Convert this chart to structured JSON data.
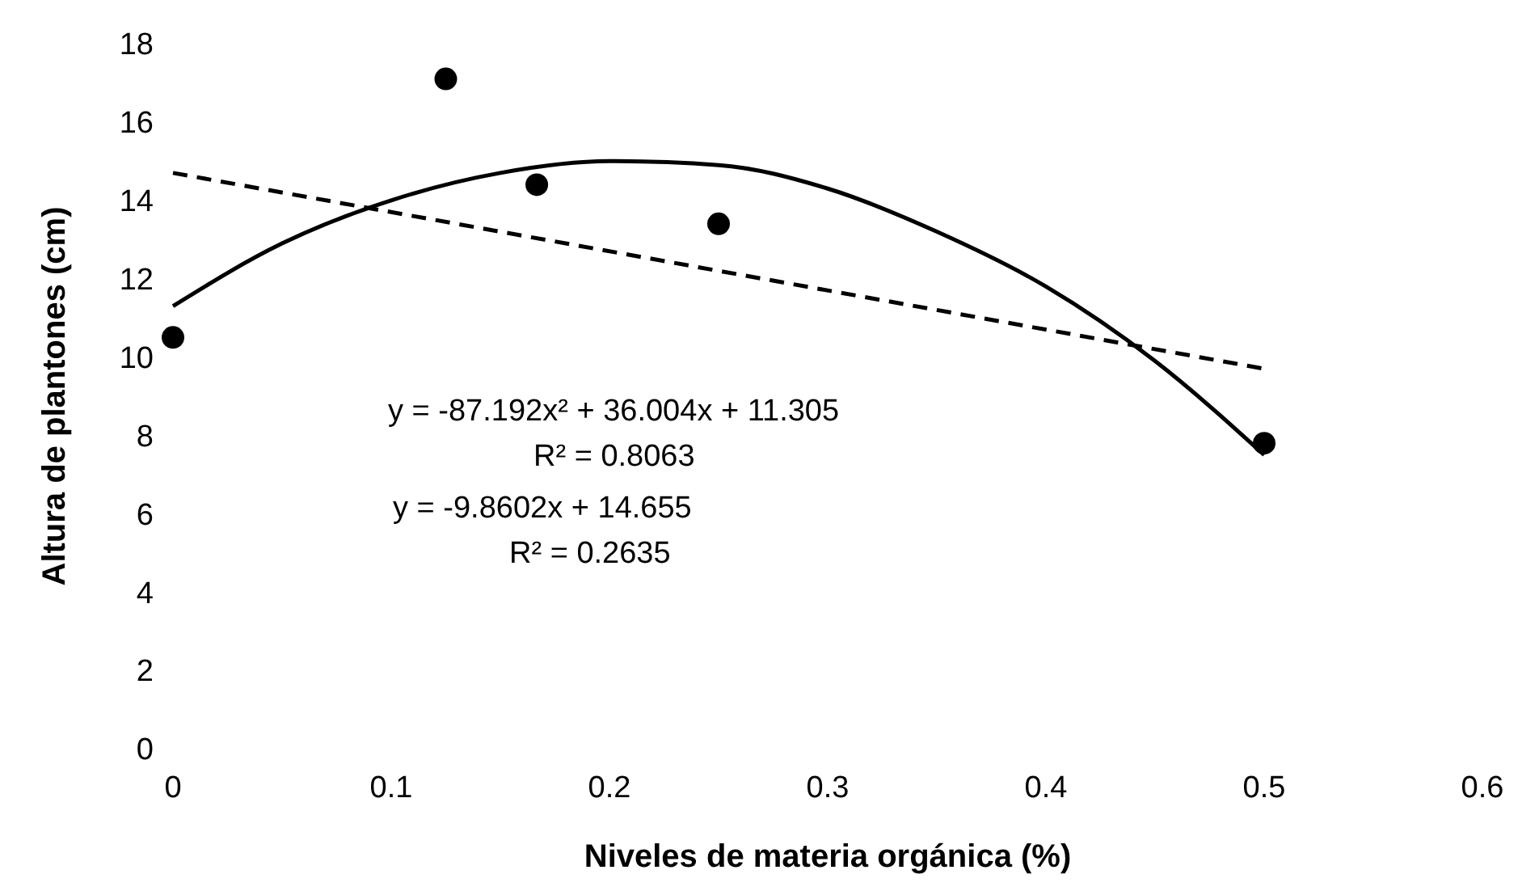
{
  "chart_data": {
    "type": "scatter",
    "xlabel": "Niveles de materia orgánica (%)",
    "ylabel": "Altura de plantones (cm)",
    "xlim": [
      0,
      0.6
    ],
    "xticks": [
      0,
      0.1,
      0.2,
      0.3,
      0.4,
      0.5,
      0.6
    ],
    "ylim": [
      0,
      18
    ],
    "yticks": [
      0,
      2,
      4,
      6,
      8,
      10,
      12,
      14,
      16,
      18
    ],
    "grid": false,
    "series": [
      {
        "color": "#000000",
        "marker": "circle",
        "x": [
          0,
          0.125,
          0.1667,
          0.25,
          0.5
        ],
        "values": [
          10.5,
          17.1,
          14.4,
          13.4,
          7.8
        ]
      },
      {
        "type": "line",
        "color": "#000000",
        "line_style": "solid",
        "x": [
          0,
          0.05,
          0.1,
          0.15,
          0.2,
          0.25,
          0.3,
          0.35,
          0.4,
          0.45,
          0.5
        ],
        "values": [
          11.3,
          12.9,
          14.0,
          14.7,
          15.0,
          14.9,
          14.3,
          13.2,
          11.8,
          9.9,
          7.5
        ]
      },
      {
        "type": "line",
        "color": "#000000",
        "line_style": "dashed",
        "x": [
          0,
          0.5
        ],
        "values": [
          14.7,
          9.7
        ]
      }
    ],
    "annotations": [
      "y = -87.192x² + 36.004x + 11.305",
      "R² = 0.8063",
      "y = -9.8602x + 14.655",
      "R² = 0.2635"
    ]
  }
}
